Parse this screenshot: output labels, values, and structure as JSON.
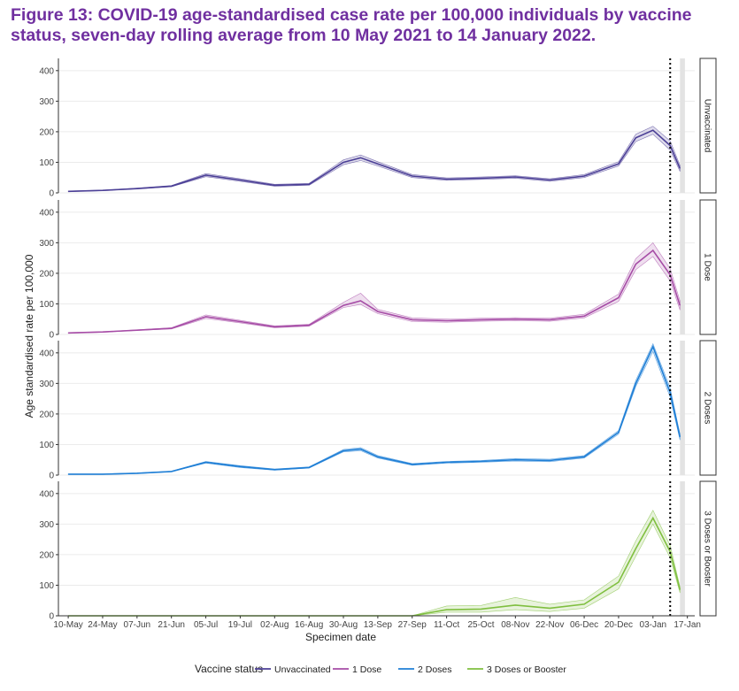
{
  "title": "Figure 13: COVID-19 age-standardised case rate per 100,000 individuals by vaccine status, seven-day rolling average from 10 May 2021 to 14 January 2022.",
  "chart_data": {
    "type": "line",
    "title": "Figure 13: COVID-19 age-standardised case rate per 100,000 individuals by vaccine status, seven-day rolling average from 10 May 2021 to 14 January 2022.",
    "xlabel": "Specimen date",
    "ylabel": "Age standardised rate per 100,000",
    "x_ticks": [
      "10-May",
      "24-May",
      "07-Jun",
      "21-Jun",
      "05-Jul",
      "19-Jul",
      "02-Aug",
      "16-Aug",
      "30-Aug",
      "13-Sep",
      "27-Sep",
      "11-Oct",
      "25-Oct",
      "08-Nov",
      "22-Nov",
      "06-Dec",
      "20-Dec",
      "03-Jan",
      "17-Jan"
    ],
    "xlim": [
      "2021-05-06",
      "2022-01-20"
    ],
    "ylim": [
      0,
      440
    ],
    "y_ticks": [
      0,
      100,
      200,
      300,
      400
    ],
    "grid": true,
    "legend_title": "Vaccine status",
    "legend_position": "bottom",
    "dotted_reference_line": "2022-01-10",
    "shaded_region": [
      "2022-01-14",
      "2022-01-16"
    ],
    "x": [
      "2021-05-10",
      "2021-05-24",
      "2021-06-07",
      "2021-06-21",
      "2021-07-05",
      "2021-07-19",
      "2021-08-02",
      "2021-08-16",
      "2021-08-30",
      "2021-09-06",
      "2021-09-13",
      "2021-09-27",
      "2021-10-11",
      "2021-10-25",
      "2021-11-08",
      "2021-11-22",
      "2021-12-06",
      "2021-12-20",
      "2021-12-27",
      "2022-01-03",
      "2022-01-10",
      "2022-01-14"
    ],
    "series": [
      {
        "name": "Unvaccinated",
        "facet": "Unvaccinated",
        "color": "#4b3f96",
        "values": [
          5,
          8,
          14,
          22,
          58,
          42,
          25,
          28,
          100,
          115,
          95,
          55,
          45,
          48,
          52,
          42,
          55,
          95,
          180,
          205,
          155,
          80
        ],
        "lower": [
          4,
          7,
          13,
          20,
          53,
          38,
          22,
          25,
          92,
          106,
          88,
          50,
          41,
          44,
          48,
          38,
          50,
          88,
          168,
          192,
          140,
          70
        ],
        "upper": [
          6,
          9,
          16,
          24,
          63,
          46,
          28,
          31,
          108,
          124,
          102,
          60,
          49,
          52,
          56,
          46,
          60,
          102,
          192,
          218,
          170,
          90
        ]
      },
      {
        "name": "1 Dose",
        "facet": "1 Dose",
        "color": "#a64ca6",
        "values": [
          5,
          8,
          14,
          20,
          58,
          42,
          25,
          30,
          95,
          110,
          75,
          48,
          45,
          48,
          50,
          48,
          60,
          120,
          230,
          275,
          195,
          95
        ],
        "lower": [
          4,
          7,
          13,
          18,
          52,
          38,
          22,
          27,
          88,
          98,
          68,
          42,
          40,
          43,
          45,
          43,
          54,
          108,
          212,
          255,
          175,
          80
        ],
        "upper": [
          6,
          9,
          15,
          22,
          64,
          46,
          28,
          33,
          105,
          135,
          82,
          54,
          50,
          53,
          55,
          53,
          66,
          132,
          248,
          300,
          215,
          110
        ]
      },
      {
        "name": "2 Doses",
        "facet": "2 Doses",
        "color": "#1f7fd6",
        "values": [
          3,
          3,
          6,
          12,
          42,
          28,
          18,
          25,
          80,
          85,
          60,
          35,
          42,
          45,
          50,
          48,
          60,
          140,
          300,
          420,
          270,
          125
        ],
        "lower": [
          2,
          2,
          5,
          11,
          39,
          25,
          16,
          23,
          76,
          80,
          56,
          32,
          39,
          42,
          46,
          44,
          56,
          134,
          290,
          405,
          255,
          115
        ],
        "upper": [
          4,
          4,
          7,
          13,
          45,
          31,
          20,
          27,
          84,
          90,
          64,
          38,
          45,
          48,
          54,
          52,
          64,
          146,
          310,
          430,
          285,
          135
        ]
      },
      {
        "name": "3 Doses or Booster",
        "facet": "3 Doses or Booster",
        "color": "#7fbf3f",
        "values": [
          0,
          0,
          0,
          0,
          0,
          0,
          0,
          0,
          0,
          0,
          0,
          0,
          20,
          22,
          35,
          25,
          38,
          110,
          220,
          320,
          210,
          85
        ],
        "lower": [
          0,
          0,
          0,
          0,
          0,
          0,
          0,
          0,
          0,
          0,
          0,
          0,
          12,
          12,
          20,
          14,
          25,
          88,
          195,
          300,
          190,
          75
        ],
        "upper": [
          0,
          0,
          0,
          0,
          0,
          0,
          0,
          0,
          0,
          0,
          0,
          0,
          32,
          34,
          60,
          38,
          52,
          130,
          245,
          345,
          230,
          95
        ]
      }
    ]
  }
}
